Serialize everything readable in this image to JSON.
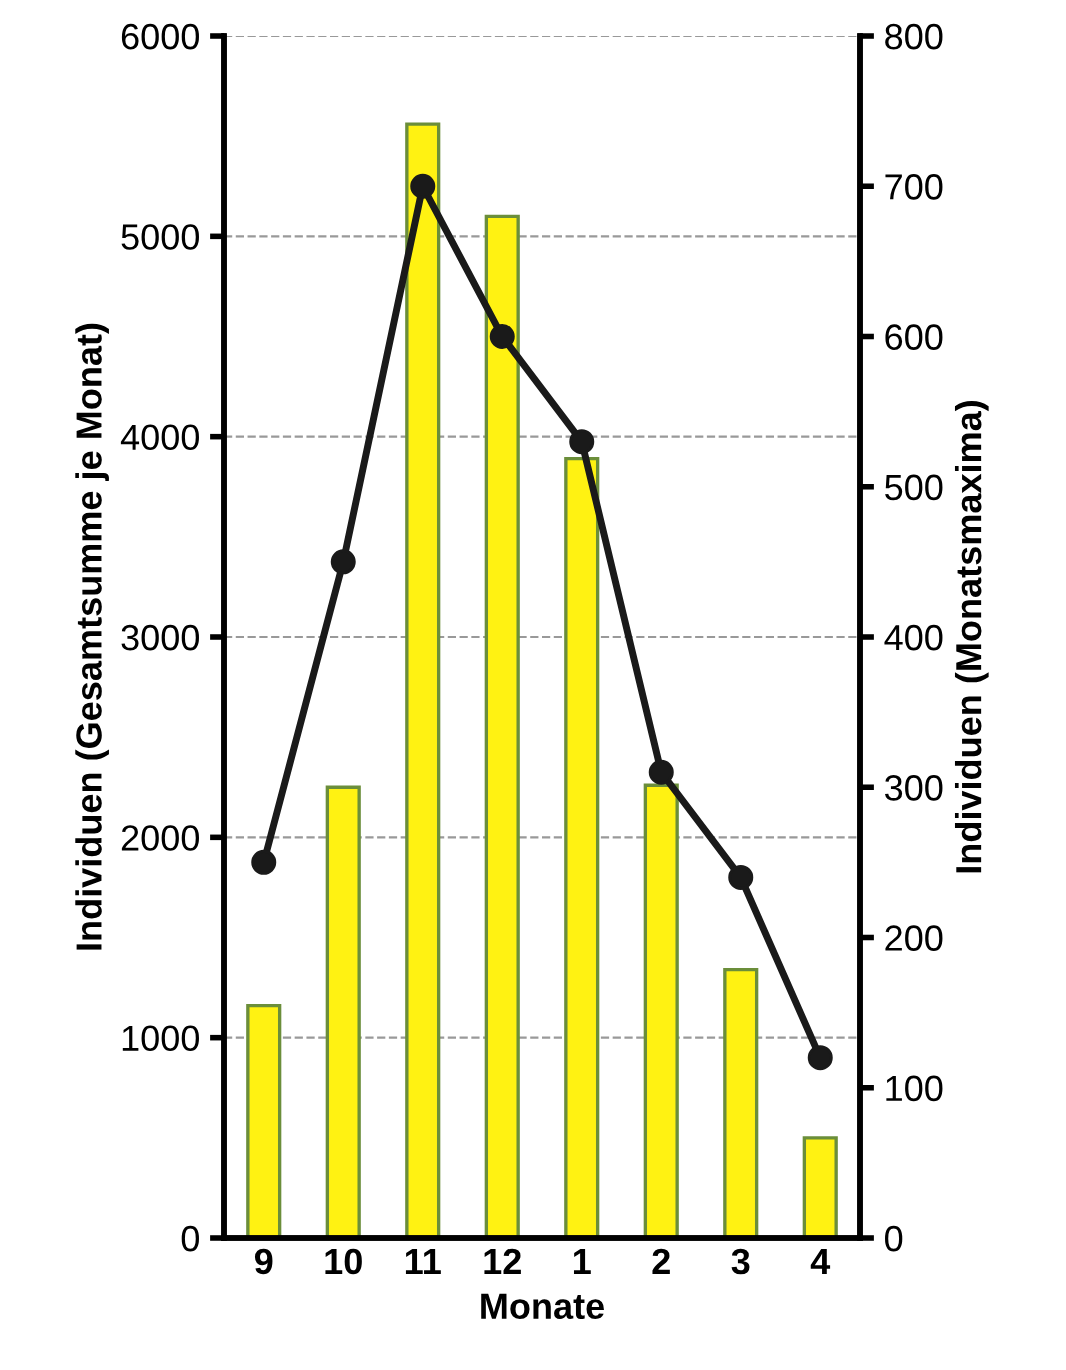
{
  "chart_data": {
    "type": "bar",
    "xlabel": "Monate",
    "ylabel": "Individuen (Gesamtsumme je Monat)",
    "y2label": "Individuen (Monatsmaxima)",
    "categories": [
      "9",
      "10",
      "11",
      "12",
      "1",
      "2",
      "3",
      "4"
    ],
    "series": [
      {
        "color": "#fff212",
        "values": [
          1160,
          2250,
          5560,
          5100,
          3890,
          2260,
          1340,
          500
        ]
      },
      {
        "type": "line",
        "axis": "y2",
        "color": "#1a1a1a",
        "marker": "circle",
        "line_style": "solid",
        "values": [
          250,
          450,
          700,
          600,
          530,
          310,
          240,
          120
        ]
      }
    ],
    "ylim": [
      0,
      6000
    ],
    "yticks": [
      0,
      1000,
      2000,
      3000,
      4000,
      5000,
      6000
    ],
    "y2lim": [
      0,
      800
    ],
    "y2ticks": [
      0,
      100,
      200,
      300,
      400,
      500,
      600,
      700,
      800
    ],
    "grid": "y",
    "legend": false
  }
}
